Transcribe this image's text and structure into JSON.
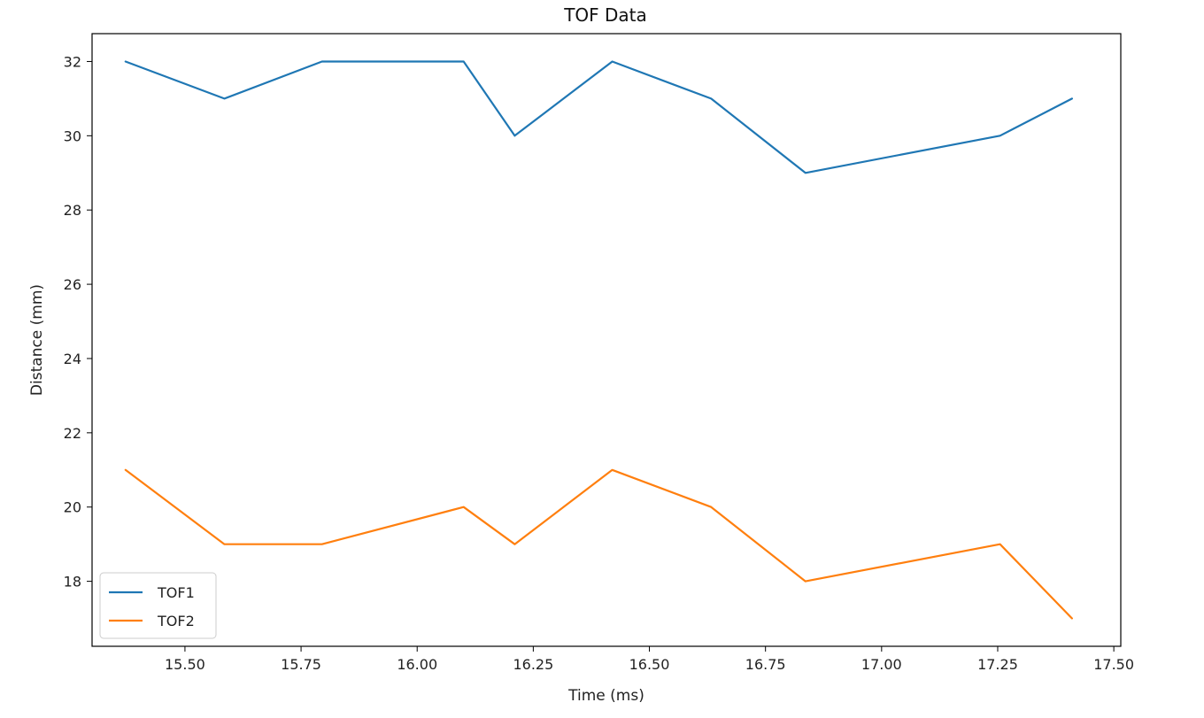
{
  "chart_data": {
    "type": "line",
    "title": "TOF Data",
    "xlabel": "Time (ms)",
    "ylabel": "Distance (mm)",
    "xlim": [
      15.3,
      17.515
    ],
    "ylim": [
      16.25,
      32.75
    ],
    "xticks": [
      "15.50",
      "15.75",
      "16.00",
      "16.25",
      "16.50",
      "16.75",
      "17.00",
      "17.25",
      "17.50"
    ],
    "yticks": [
      "18",
      "20",
      "22",
      "24",
      "26",
      "28",
      "30",
      "32"
    ],
    "grid": false,
    "legend_position": "lower-left",
    "series": [
      {
        "name": "TOF1",
        "color": "#1f77b4",
        "x": [
          15.372,
          15.585,
          15.795,
          16.1,
          16.21,
          16.42,
          16.633,
          16.836,
          17.255,
          17.41
        ],
        "y": [
          32,
          31,
          32,
          32,
          30,
          32,
          31,
          29,
          30,
          31
        ]
      },
      {
        "name": "TOF2",
        "color": "#ff7f0e",
        "x": [
          15.372,
          15.585,
          15.795,
          16.1,
          16.21,
          16.42,
          16.633,
          16.836,
          17.255,
          17.41
        ],
        "y": [
          21,
          19,
          19,
          20,
          19,
          21,
          20,
          18,
          19,
          17
        ]
      }
    ]
  }
}
